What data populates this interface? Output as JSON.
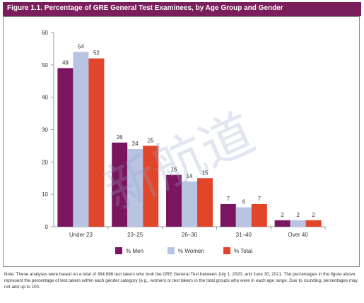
{
  "header": {
    "title": "Figure 1.1. Percentage of GRE General Test Examinees, by Age Group and Gender"
  },
  "chart_data": {
    "type": "bar",
    "title": "Figure 1.1. Percentage of GRE General Test Examinees, by Age Group and Gender",
    "xlabel": "",
    "ylabel": "",
    "ylim": [
      0,
      60
    ],
    "yticks": [
      0,
      10,
      20,
      30,
      40,
      50,
      60
    ],
    "grid": false,
    "legend_position": "bottom",
    "categories": [
      "Under 23",
      "23–25",
      "26–30",
      "31–40",
      "Over 40"
    ],
    "series": [
      {
        "name": "% Men",
        "color": "#7a1660",
        "values": [
          49,
          26,
          16,
          7,
          2
        ]
      },
      {
        "name": "% Women",
        "color": "#b8c4e2",
        "values": [
          54,
          24,
          14,
          6,
          2
        ]
      },
      {
        "name": "% Total",
        "color": "#e2462a",
        "values": [
          52,
          25,
          15,
          7,
          2
        ]
      }
    ]
  },
  "watermark": {
    "text": "新航道"
  },
  "footer": {
    "note": "Note: These analyses were based on a total of 364,686 test takers who took the GRE General Test between July 1, 2020, and June 30, 2021. The percentages in the figure above represent the percentage of test takers within each gender category (e.g., women) or test takers in the total groups who were in each age range. Due to rounding, percentages may not add up to 100."
  }
}
